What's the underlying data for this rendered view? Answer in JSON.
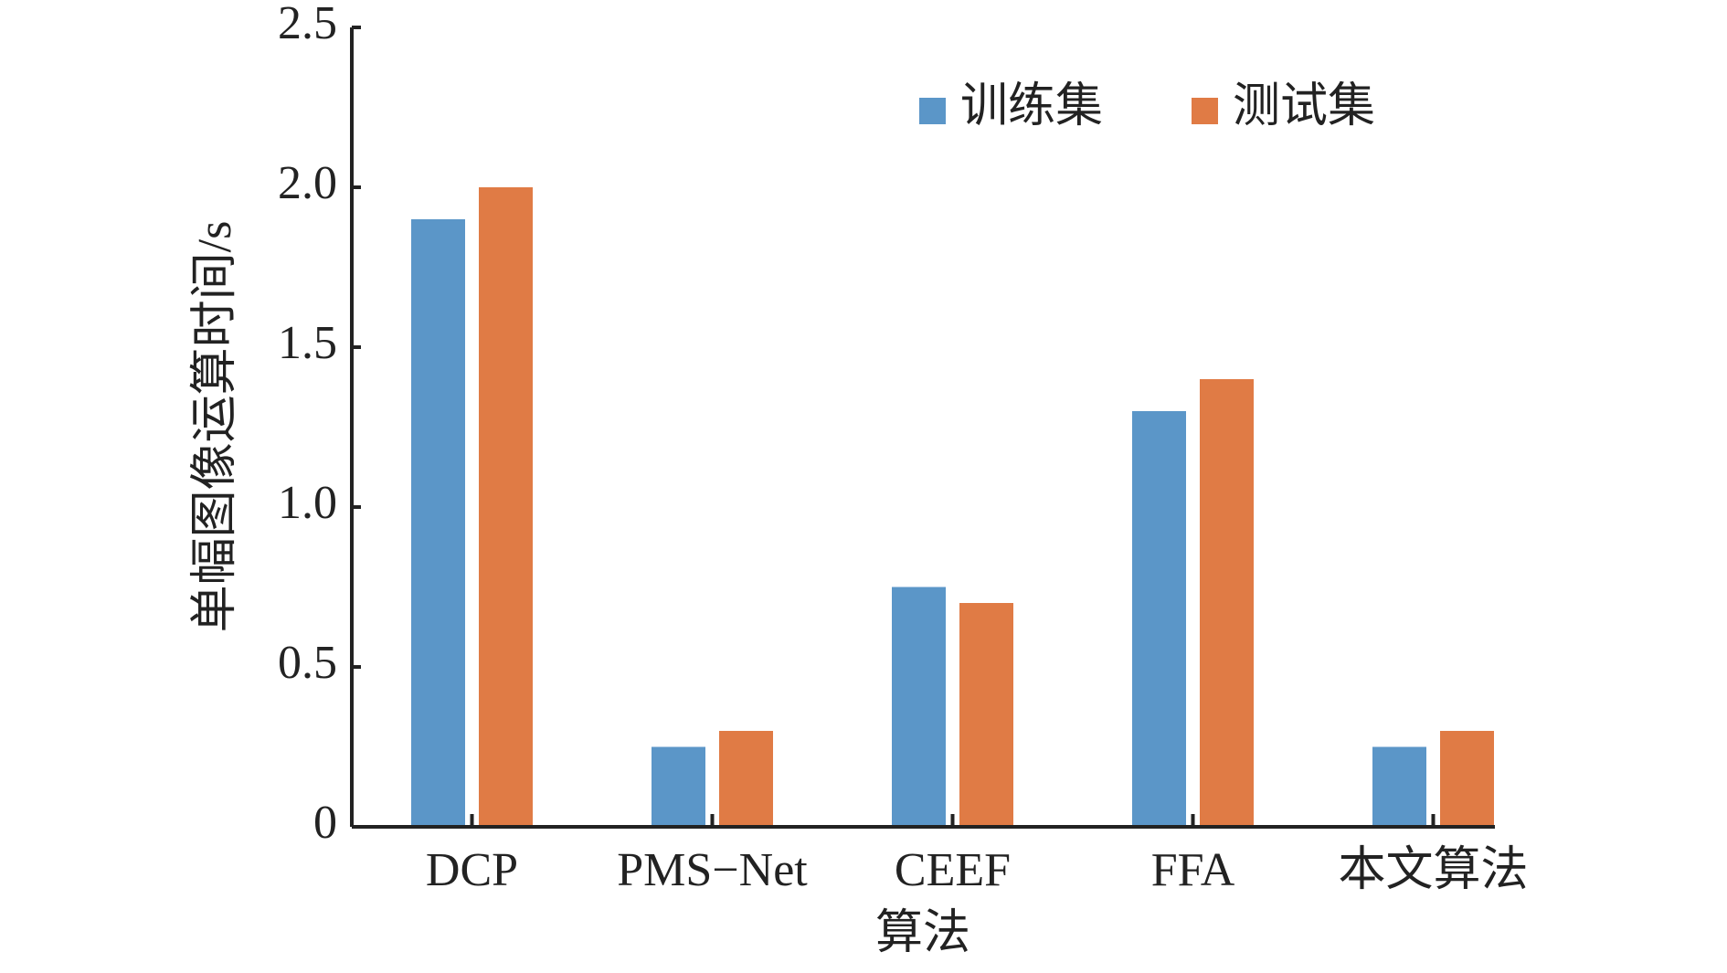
{
  "chart_data": {
    "type": "bar",
    "x_label": "算法",
    "y_label": "单幅图像运算时间/s",
    "categories": [
      "DCP",
      "PMS−Net",
      "CEEF",
      "FFA",
      "本文算法"
    ],
    "series": [
      {
        "name": "训练集",
        "color": "#5b96c8",
        "values": [
          1.9,
          0.25,
          0.75,
          1.3,
          0.25
        ]
      },
      {
        "name": "测试集",
        "color": "#e07b45",
        "values": [
          2.0,
          0.3,
          0.7,
          1.4,
          0.3
        ]
      }
    ],
    "ylim": [
      0,
      2.5
    ],
    "yticks": [
      0,
      0.5,
      {
        "value": 1,
        "label": "1.0"
      },
      1.5,
      {
        "value": 2,
        "label": "2.0"
      },
      2.5
    ],
    "grid": false,
    "legend": "top-right"
  }
}
